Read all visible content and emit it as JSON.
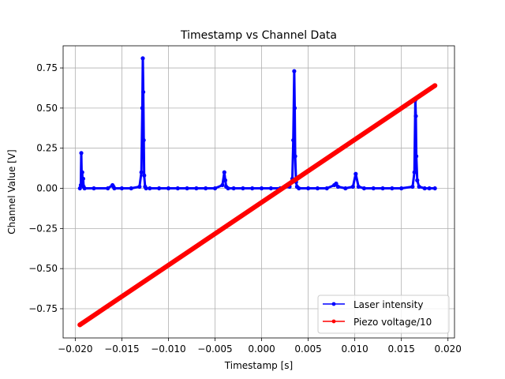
{
  "chart_data": {
    "type": "line",
    "title": "Timestamp vs Channel Data",
    "xlabel": "Timestamp [s]",
    "ylabel": "Channel Value [V]",
    "xlim": [
      -0.0213,
      0.0207
    ],
    "ylim": [
      -0.932,
      0.888
    ],
    "xticks": [
      -0.02,
      -0.015,
      -0.01,
      -0.005,
      0.0,
      0.005,
      0.01,
      0.015,
      0.02
    ],
    "xtick_labels": [
      "−0.020",
      "−0.015",
      "−0.010",
      "−0.005",
      "0.000",
      "0.005",
      "0.010",
      "0.015",
      "0.020"
    ],
    "yticks": [
      -0.75,
      -0.5,
      -0.25,
      0.0,
      0.25,
      0.5,
      0.75
    ],
    "ytick_labels": [
      "−0.75",
      "−0.50",
      "−0.25",
      "0.00",
      "0.25",
      "0.50",
      "0.75"
    ],
    "grid": true,
    "legend_position": "bottom-right",
    "series": [
      {
        "name": "Laser intensity",
        "color": "#0000ff",
        "x": [
          -0.0195,
          -0.0194,
          -0.01935,
          -0.0193,
          -0.01925,
          -0.0192,
          -0.01915,
          -0.0191,
          -0.019,
          -0.018,
          -0.0165,
          -0.016,
          -0.0159,
          -0.0158,
          -0.015,
          -0.014,
          -0.0131,
          -0.0129,
          -0.0128,
          -0.01275,
          -0.0127,
          -0.01265,
          -0.0126,
          -0.0125,
          -0.0124,
          -0.012,
          -0.011,
          -0.01,
          -0.009,
          -0.008,
          -0.007,
          -0.006,
          -0.005,
          -0.0042,
          -0.004,
          -0.0039,
          -0.0038,
          -0.0036,
          -0.003,
          -0.002,
          -0.001,
          0.0,
          0.001,
          0.002,
          0.003,
          0.0033,
          0.0034,
          0.0035,
          0.00355,
          0.0036,
          0.0037,
          0.0038,
          0.004,
          0.005,
          0.006,
          0.007,
          0.0078,
          0.008,
          0.0082,
          0.009,
          0.0098,
          0.0101,
          0.0104,
          0.011,
          0.012,
          0.013,
          0.014,
          0.015,
          0.0162,
          0.0164,
          0.0165,
          0.01655,
          0.0166,
          0.0167,
          0.0169,
          0.0175,
          0.018,
          0.0186
        ],
        "y": [
          0.0,
          0.02,
          0.22,
          0.05,
          0.1,
          0.02,
          0.06,
          0.01,
          0.0,
          0.0,
          0.0,
          0.02,
          0.01,
          0.0,
          0.0,
          0.0,
          0.01,
          0.1,
          0.5,
          0.81,
          0.6,
          0.3,
          0.08,
          0.01,
          0.0,
          0.0,
          0.0,
          0.0,
          0.0,
          0.0,
          0.0,
          0.0,
          0.0,
          0.02,
          0.1,
          0.05,
          0.01,
          0.0,
          0.0,
          0.0,
          0.0,
          0.0,
          0.0,
          0.0,
          0.01,
          0.06,
          0.3,
          0.73,
          0.5,
          0.2,
          0.04,
          0.01,
          0.0,
          0.0,
          0.0,
          0.0,
          0.02,
          0.03,
          0.01,
          0.0,
          0.01,
          0.09,
          0.01,
          0.0,
          0.0,
          0.0,
          0.0,
          0.0,
          0.01,
          0.1,
          0.55,
          0.45,
          0.2,
          0.05,
          0.01,
          0.0,
          0.0,
          0.0
        ]
      },
      {
        "name": "Piezo voltage/10",
        "color": "#ff0000",
        "x": [
          -0.0195,
          0.0186
        ],
        "y": [
          -0.85,
          0.64
        ]
      }
    ]
  }
}
